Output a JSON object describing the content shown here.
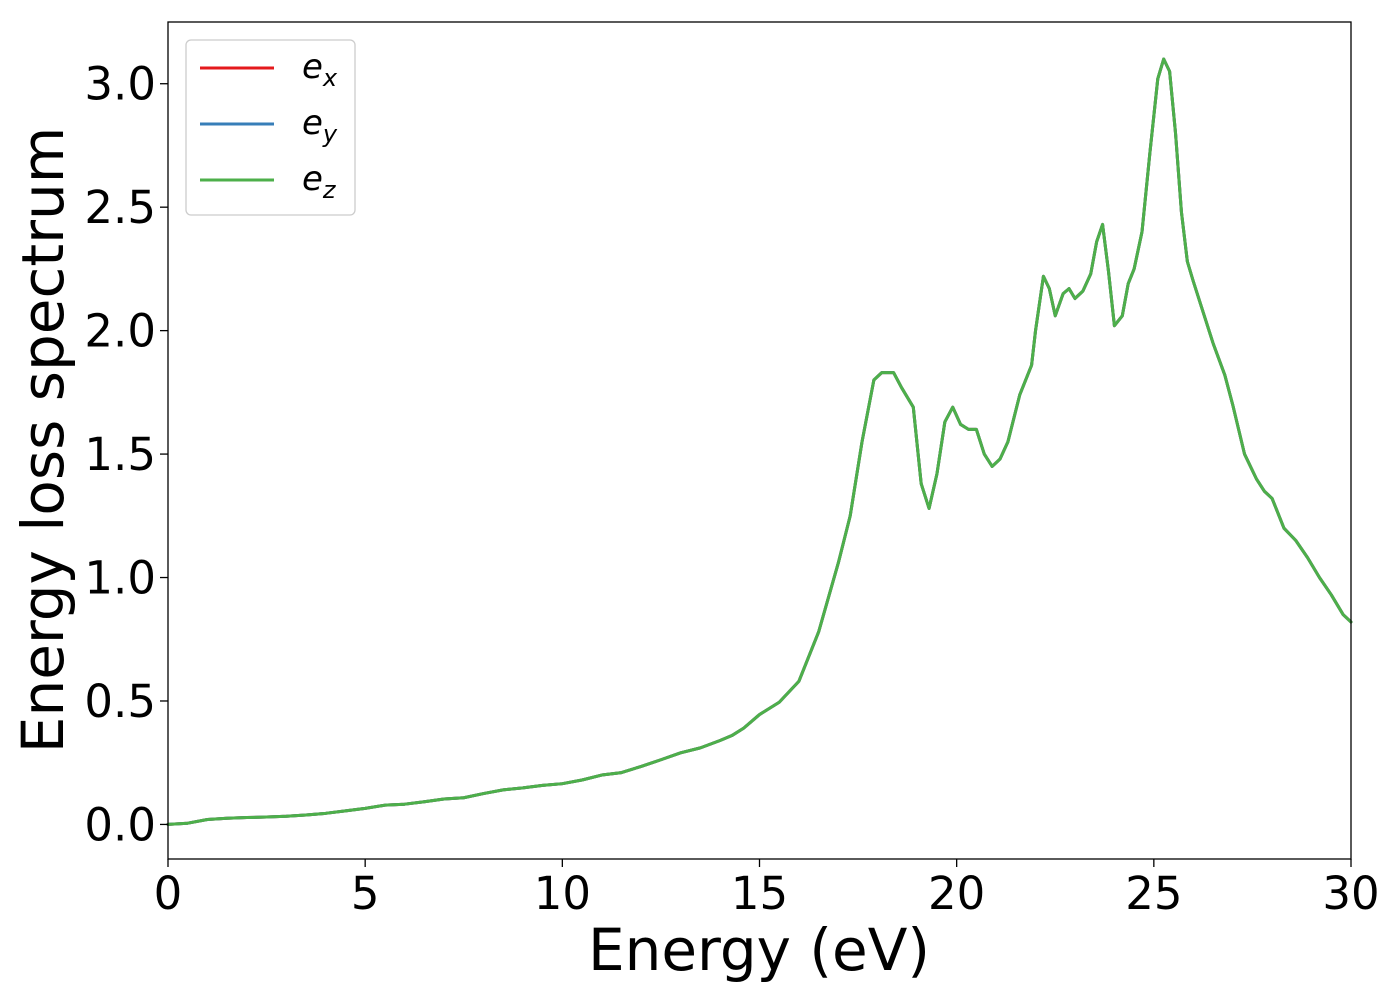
{
  "chart_data": {
    "type": "line",
    "xlabel": "Energy (eV)",
    "ylabel": "Energy loss spectrum",
    "xlim": [
      0,
      30
    ],
    "ylim": [
      -0.14,
      3.25
    ],
    "xticks": [
      0,
      5,
      10,
      15,
      20,
      25,
      30
    ],
    "xtick_labels": [
      "0",
      "5",
      "10",
      "15",
      "20",
      "25",
      "30"
    ],
    "yticks": [
      0.0,
      0.5,
      1.0,
      1.5,
      2.0,
      2.5,
      3.0
    ],
    "ytick_labels": [
      "0.0",
      "0.5",
      "1.0",
      "1.5",
      "2.0",
      "2.5",
      "3.0"
    ],
    "grid": false,
    "legend_position": "upper-left",
    "x": [
      0,
      0.5,
      1.0,
      1.5,
      2.0,
      2.5,
      3.0,
      3.5,
      4.0,
      4.5,
      5.0,
      5.5,
      6.0,
      6.5,
      7.0,
      7.5,
      8.0,
      8.5,
      9.0,
      9.5,
      10.0,
      10.5,
      11.0,
      11.5,
      12.0,
      12.5,
      13.0,
      13.5,
      14.0,
      14.3,
      14.6,
      15.0,
      15.5,
      16.0,
      16.5,
      17.0,
      17.3,
      17.6,
      17.9,
      18.1,
      18.4,
      18.6,
      18.9,
      19.1,
      19.3,
      19.5,
      19.7,
      19.9,
      20.1,
      20.3,
      20.5,
      20.7,
      20.9,
      21.1,
      21.3,
      21.6,
      21.9,
      22.0,
      22.2,
      22.35,
      22.5,
      22.7,
      22.85,
      23.0,
      23.2,
      23.4,
      23.55,
      23.7,
      23.85,
      24.0,
      24.2,
      24.35,
      24.5,
      24.7,
      24.9,
      25.1,
      25.25,
      25.4,
      25.55,
      25.7,
      25.85,
      26.0,
      26.2,
      26.5,
      26.8,
      27.0,
      27.3,
      27.6,
      27.8,
      28.0,
      28.3,
      28.6,
      28.9,
      29.2,
      29.5,
      29.8,
      30.0
    ],
    "series": [
      {
        "name": "e_x",
        "color": "#e41a1c",
        "values": [
          0.0,
          0.005,
          0.02,
          0.025,
          0.028,
          0.03,
          0.033,
          0.038,
          0.045,
          0.055,
          0.065,
          0.078,
          0.082,
          0.092,
          0.103,
          0.108,
          0.125,
          0.14,
          0.148,
          0.158,
          0.165,
          0.18,
          0.2,
          0.21,
          0.235,
          0.262,
          0.29,
          0.31,
          0.34,
          0.36,
          0.39,
          0.445,
          0.495,
          0.58,
          0.78,
          1.06,
          1.25,
          1.55,
          1.8,
          1.83,
          1.83,
          1.77,
          1.69,
          1.38,
          1.28,
          1.42,
          1.63,
          1.69,
          1.62,
          1.6,
          1.6,
          1.5,
          1.45,
          1.48,
          1.55,
          1.74,
          1.86,
          2.0,
          2.22,
          2.17,
          2.06,
          2.15,
          2.17,
          2.13,
          2.16,
          2.23,
          2.36,
          2.43,
          2.24,
          2.02,
          2.06,
          2.19,
          2.25,
          2.4,
          2.72,
          3.02,
          3.1,
          3.05,
          2.8,
          2.48,
          2.28,
          2.2,
          2.1,
          1.95,
          1.82,
          1.7,
          1.5,
          1.4,
          1.35,
          1.32,
          1.2,
          1.15,
          1.08,
          1.0,
          0.93,
          0.85,
          0.82
        ]
      },
      {
        "name": "e_y",
        "color": "#377eb8",
        "values": [
          0.0,
          0.005,
          0.02,
          0.025,
          0.028,
          0.03,
          0.033,
          0.038,
          0.045,
          0.055,
          0.065,
          0.078,
          0.082,
          0.092,
          0.103,
          0.108,
          0.125,
          0.14,
          0.148,
          0.158,
          0.165,
          0.18,
          0.2,
          0.21,
          0.235,
          0.262,
          0.29,
          0.31,
          0.34,
          0.36,
          0.39,
          0.445,
          0.495,
          0.58,
          0.78,
          1.06,
          1.25,
          1.55,
          1.8,
          1.83,
          1.83,
          1.77,
          1.69,
          1.38,
          1.28,
          1.42,
          1.63,
          1.69,
          1.62,
          1.6,
          1.6,
          1.5,
          1.45,
          1.48,
          1.55,
          1.74,
          1.86,
          2.0,
          2.22,
          2.17,
          2.06,
          2.15,
          2.17,
          2.13,
          2.16,
          2.23,
          2.36,
          2.43,
          2.24,
          2.02,
          2.06,
          2.19,
          2.25,
          2.4,
          2.72,
          3.02,
          3.1,
          3.05,
          2.8,
          2.48,
          2.28,
          2.2,
          2.1,
          1.95,
          1.82,
          1.7,
          1.5,
          1.4,
          1.35,
          1.32,
          1.2,
          1.15,
          1.08,
          1.0,
          0.93,
          0.85,
          0.82
        ]
      },
      {
        "name": "e_z",
        "color": "#4daf4a",
        "values": [
          0.0,
          0.005,
          0.02,
          0.025,
          0.028,
          0.03,
          0.033,
          0.038,
          0.045,
          0.055,
          0.065,
          0.078,
          0.082,
          0.092,
          0.103,
          0.108,
          0.125,
          0.14,
          0.148,
          0.158,
          0.165,
          0.18,
          0.2,
          0.21,
          0.235,
          0.262,
          0.29,
          0.31,
          0.34,
          0.36,
          0.39,
          0.445,
          0.495,
          0.58,
          0.78,
          1.06,
          1.25,
          1.55,
          1.8,
          1.83,
          1.83,
          1.77,
          1.69,
          1.38,
          1.28,
          1.42,
          1.63,
          1.69,
          1.62,
          1.6,
          1.6,
          1.5,
          1.45,
          1.48,
          1.55,
          1.74,
          1.86,
          2.0,
          2.22,
          2.17,
          2.06,
          2.15,
          2.17,
          2.13,
          2.16,
          2.23,
          2.36,
          2.43,
          2.24,
          2.02,
          2.06,
          2.19,
          2.25,
          2.4,
          2.72,
          3.02,
          3.1,
          3.05,
          2.8,
          2.48,
          2.28,
          2.2,
          2.1,
          1.95,
          1.82,
          1.7,
          1.5,
          1.4,
          1.35,
          1.32,
          1.2,
          1.15,
          1.08,
          1.0,
          0.93,
          0.85,
          0.82
        ]
      }
    ],
    "legend": [
      {
        "base": "e",
        "sub": "x",
        "color": "#e41a1c"
      },
      {
        "base": "e",
        "sub": "y",
        "color": "#377eb8"
      },
      {
        "base": "e",
        "sub": "z",
        "color": "#4daf4a"
      }
    ]
  }
}
